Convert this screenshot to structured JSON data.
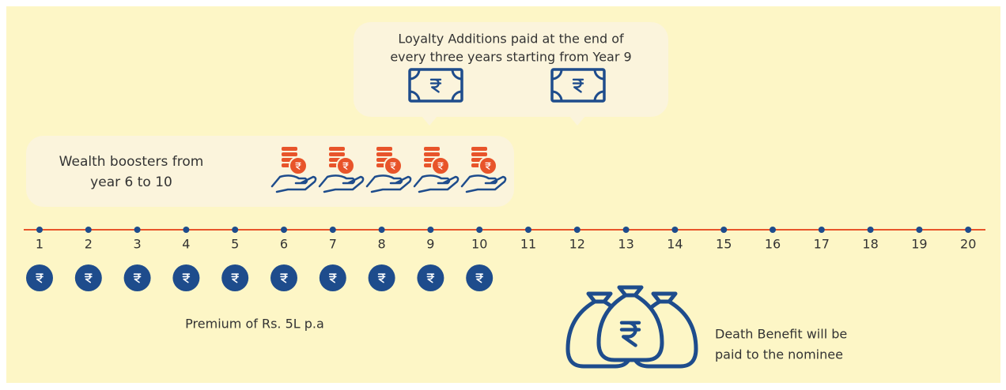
{
  "loyalty": {
    "lines": [
      "Loyalty Additions paid at the end of",
      "every three years starting from Year 9"
    ]
  },
  "wealth": {
    "lines": [
      "Wealth boosters from",
      "year 6 to 10"
    ]
  },
  "timeline": {
    "years": [
      "1",
      "2",
      "3",
      "4",
      "5",
      "6",
      "7",
      "8",
      "9",
      "10",
      "11",
      "12",
      "13",
      "14",
      "15",
      "16",
      "17",
      "18",
      "19",
      "20"
    ]
  },
  "premium": "Premium of Rs. 5L p.a",
  "death_benefit": {
    "lines": [
      "Death Benefit will be",
      "paid to the nominee"
    ]
  }
}
